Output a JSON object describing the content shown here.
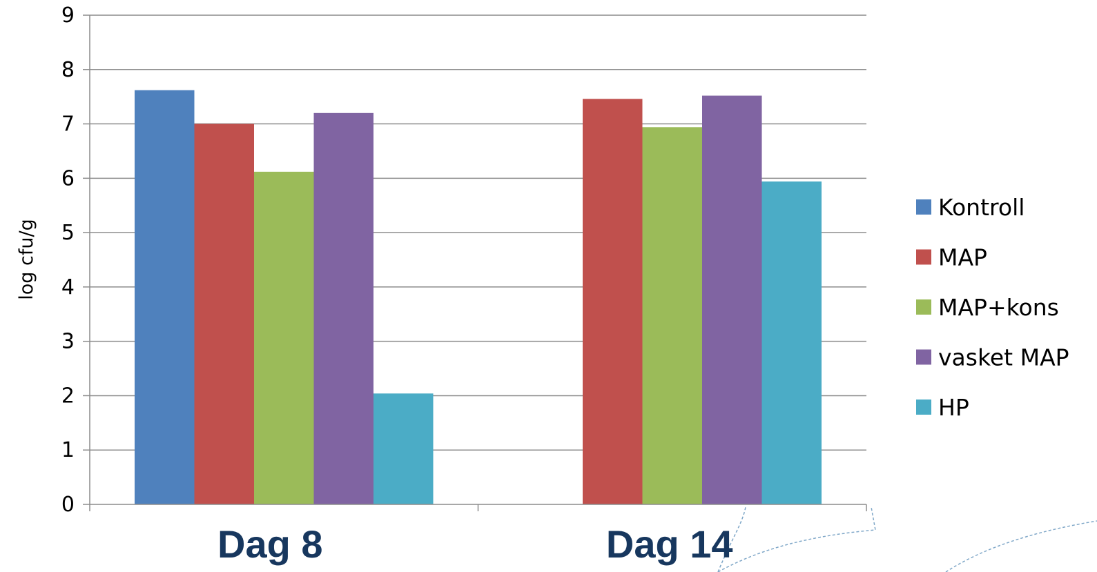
{
  "chart_data": {
    "type": "bar",
    "ylabel": "log cfu/g",
    "xlabel": "",
    "title": "",
    "ylim": [
      0,
      9
    ],
    "yticks": [
      0,
      1,
      2,
      3,
      4,
      5,
      6,
      7,
      8,
      9
    ],
    "grid": true,
    "legend_position": "right",
    "categories": [
      "Dag 8",
      "Dag 14"
    ],
    "series": [
      {
        "name": "Kontroll",
        "color": "#4f81bd",
        "values": [
          7.62,
          null
        ]
      },
      {
        "name": "MAP",
        "color": "#c0504d",
        "values": [
          7.0,
          7.46
        ]
      },
      {
        "name": "MAP+kons",
        "color": "#9bbb59",
        "values": [
          6.12,
          6.94
        ]
      },
      {
        "name": "vasket MAP",
        "color": "#8064a2",
        "values": [
          7.2,
          7.52
        ]
      },
      {
        "name": "HP",
        "color": "#4bacc6",
        "values": [
          2.04,
          5.94
        ]
      }
    ]
  }
}
